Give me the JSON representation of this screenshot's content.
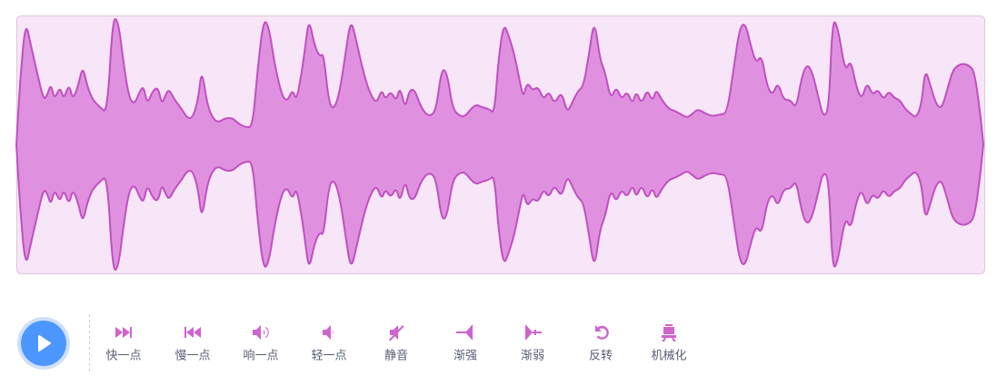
{
  "buttons": [
    "快一点",
    "慢一点",
    "响一点",
    "轻一点",
    "静音",
    "渐强",
    "渐弱",
    "反转",
    "机械化"
  ]
}
